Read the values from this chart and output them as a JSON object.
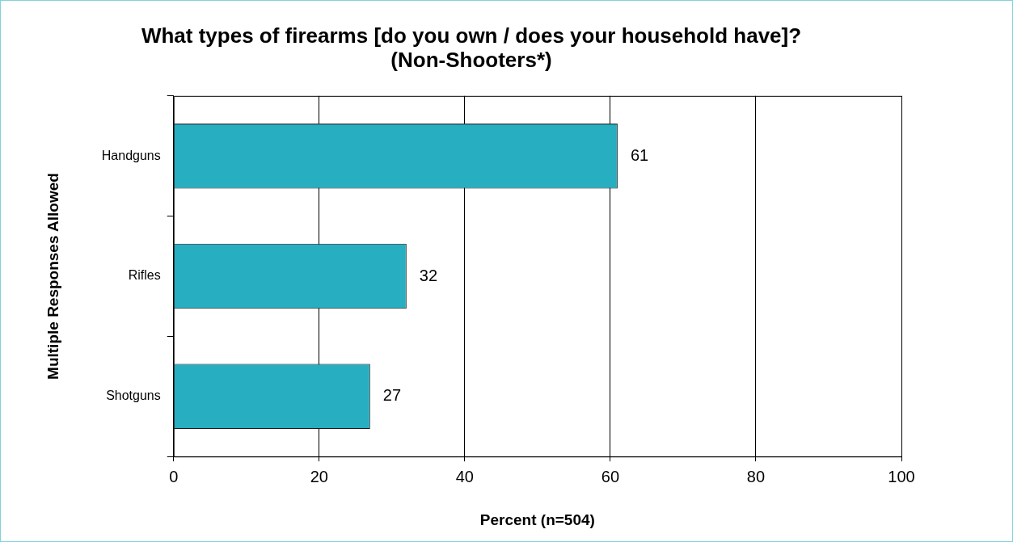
{
  "chart_data": {
    "type": "bar",
    "orientation": "horizontal",
    "title": "What types of firearms [do you own / does your household have]? (Non-Shooters*)",
    "xlabel": "Percent (n=504)",
    "ylabel": "Multiple Responses Allowed",
    "categories": [
      "Handguns",
      "Rifles",
      "Shotguns"
    ],
    "values": [
      61,
      32,
      27
    ],
    "color": "#27aec0",
    "xlim": [
      0,
      100
    ],
    "xticks": [
      0,
      20,
      40,
      60,
      80,
      100
    ],
    "grid": "x",
    "legend": false,
    "data_labels": true
  }
}
